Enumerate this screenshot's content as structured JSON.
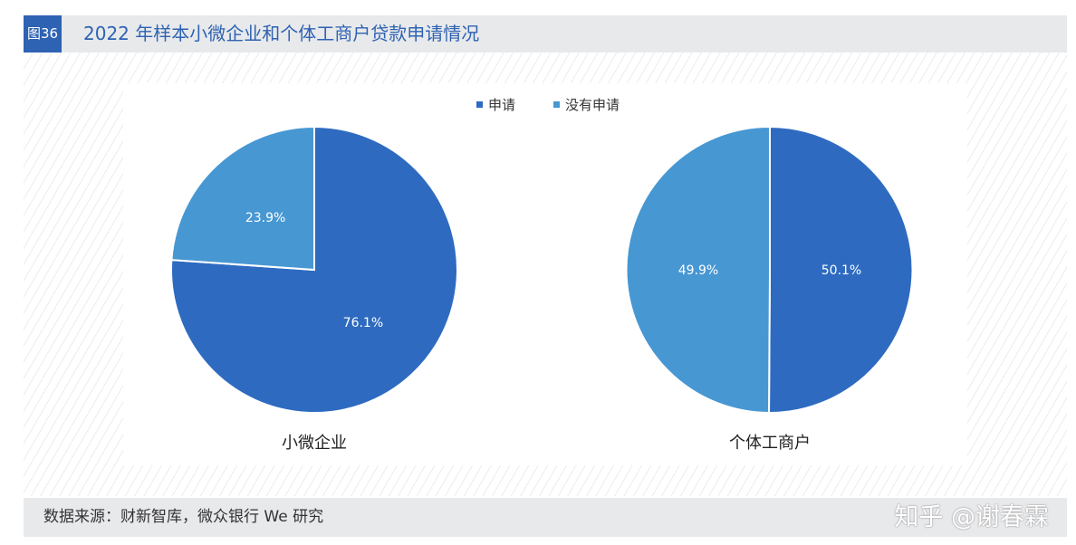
{
  "figure": {
    "badge": "图36",
    "title": "2022 年样本小微企业和个体工商户贷款申请情况"
  },
  "footer": {
    "source": "数据来源：财新智库，微众银行 We 研究",
    "watermark": "知乎 @谢春霖"
  },
  "colors": {
    "applied": "#2e6bc0",
    "not_applied": "#4797d3",
    "header_bg": "#e8e9eb",
    "accent": "#2e62b3"
  },
  "chart_data": {
    "type": "pie",
    "legend": {
      "placement": "top-center",
      "entries": [
        "申请",
        "没有申请"
      ]
    },
    "charts": [
      {
        "name": "小微企业",
        "slices": [
          {
            "label": "申请",
            "value": 76.1,
            "display": "76.1%"
          },
          {
            "label": "没有申请",
            "value": 23.9,
            "display": "23.9%"
          }
        ]
      },
      {
        "name": "个体工商户",
        "slices": [
          {
            "label": "申请",
            "value": 50.1,
            "display": "50.1%"
          },
          {
            "label": "没有申请",
            "value": 49.9,
            "display": "49.9%"
          }
        ]
      }
    ]
  }
}
